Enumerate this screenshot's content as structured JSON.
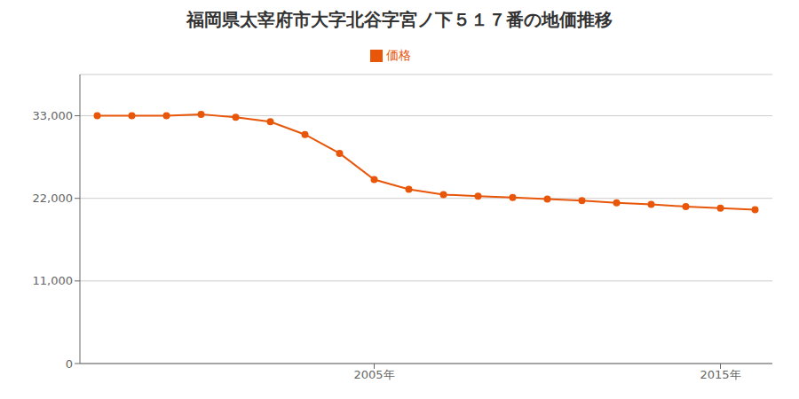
{
  "chart_data": {
    "type": "line",
    "title": "福岡県太宰府市大字北谷字宮ノ下５１７番の地価推移",
    "x": [
      1997,
      1998,
      1999,
      2000,
      2001,
      2002,
      2003,
      2004,
      2005,
      2006,
      2007,
      2008,
      2009,
      2010,
      2011,
      2012,
      2013,
      2014,
      2015,
      2016
    ],
    "series": [
      {
        "name": "価格",
        "color": "#E8560A",
        "marker": "circle",
        "values": [
          33000,
          33000,
          33000,
          33200,
          32800,
          32200,
          30500,
          28000,
          24500,
          23200,
          22500,
          22300,
          22100,
          21900,
          21700,
          21400,
          21200,
          20900,
          20700,
          20500
        ]
      }
    ],
    "xlim": [
      1996.5,
      2016.5
    ],
    "xticks": [
      {
        "value": 2005,
        "label": "2005年"
      },
      {
        "value": 2015,
        "label": "2015年"
      }
    ],
    "ylim": [
      0,
      38500
    ],
    "yticks": [
      0,
      {
        "value": 11000,
        "label": "11,000"
      },
      {
        "value": 22000,
        "label": "22,000"
      },
      {
        "value": 33000,
        "label": "33,000"
      }
    ],
    "grid": "y",
    "legend": "top"
  }
}
